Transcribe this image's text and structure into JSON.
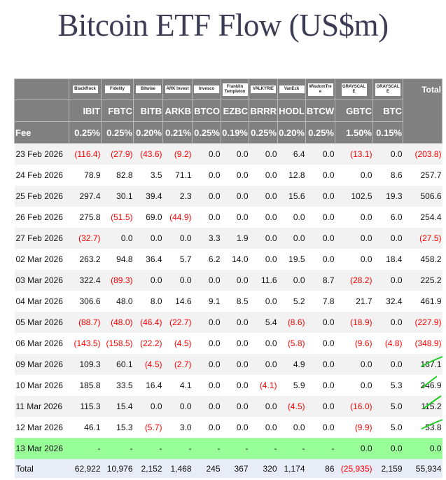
{
  "title": "Bitcoin ETF Flow (US$m)",
  "colors": {
    "header_bg": "#808080",
    "negative": "#ff0000",
    "today_row": "#99ff99",
    "total_row": "#e8ecf6",
    "check_marks": "#22cc22"
  },
  "issuers": [
    "BlackRock",
    "Fidelity",
    "Bitwise",
    "ARK Invest",
    "Invesco",
    "Franklin Templeton",
    "VALKYRIE",
    "VanEck",
    "WisdomTree",
    "GRAYSCALE",
    "GRAYSCALE"
  ],
  "total_label": "Total",
  "tickers": [
    "IBIT",
    "FBTC",
    "BITB",
    "ARKB",
    "BTCO",
    "EZBC",
    "BRRR",
    "HODL",
    "BTCW",
    "GBTC",
    "BTC"
  ],
  "fee_label": "Fee",
  "fees": [
    "0.25%",
    "0.25%",
    "0.20%",
    "0.21%",
    "0.25%",
    "0.19%",
    "0.25%",
    "0.20%",
    "0.25%",
    "1.50%",
    "0.15%"
  ],
  "rows": [
    {
      "date": "23 Feb 2026",
      "values": [
        "(116.4)",
        "(27.9)",
        "(43.6)",
        "(9.2)",
        "0.0",
        "0.0",
        "0.0",
        "6.4",
        "0.0",
        "(13.1)",
        "0.0",
        "(203.8)"
      ]
    },
    {
      "date": "24 Feb 2026",
      "values": [
        "78.9",
        "82.8",
        "3.5",
        "71.1",
        "0.0",
        "0.0",
        "0.0",
        "12.8",
        "0.0",
        "0.0",
        "8.6",
        "257.7"
      ]
    },
    {
      "date": "25 Feb 2026",
      "values": [
        "297.4",
        "30.1",
        "39.4",
        "2.3",
        "0.0",
        "0.0",
        "0.0",
        "15.6",
        "0.0",
        "102.5",
        "19.3",
        "506.6"
      ]
    },
    {
      "date": "26 Feb 2026",
      "values": [
        "275.8",
        "(51.5)",
        "69.0",
        "(44.9)",
        "0.0",
        "0.0",
        "0.0",
        "0.0",
        "0.0",
        "0.0",
        "6.0",
        "254.4"
      ]
    },
    {
      "date": "27 Feb 2026",
      "values": [
        "(32.7)",
        "0.0",
        "0.0",
        "0.0",
        "3.3",
        "1.9",
        "0.0",
        "0.0",
        "0.0",
        "0.0",
        "0.0",
        "(27.5)"
      ]
    },
    {
      "date": "02 Mar 2026",
      "values": [
        "263.2",
        "94.8",
        "36.4",
        "5.7",
        "6.2",
        "14.0",
        "0.0",
        "19.5",
        "0.0",
        "0.0",
        "18.4",
        "458.2"
      ]
    },
    {
      "date": "03 Mar 2026",
      "values": [
        "322.4",
        "(89.3)",
        "0.0",
        "0.0",
        "0.0",
        "0.0",
        "11.6",
        "0.0",
        "8.7",
        "(28.2)",
        "0.0",
        "225.2"
      ]
    },
    {
      "date": "04 Mar 2026",
      "values": [
        "306.6",
        "48.0",
        "8.0",
        "14.6",
        "9.1",
        "8.5",
        "0.0",
        "5.2",
        "7.8",
        "21.7",
        "32.4",
        "461.9"
      ]
    },
    {
      "date": "05 Mar 2026",
      "values": [
        "(88.7)",
        "(48.0)",
        "(46.4)",
        "(22.7)",
        "0.0",
        "0.0",
        "5.4",
        "(8.6)",
        "0.0",
        "(18.9)",
        "0.0",
        "(227.9)"
      ]
    },
    {
      "date": "06 Mar 2026",
      "values": [
        "(143.5)",
        "(158.5)",
        "(22.2)",
        "(4.5)",
        "0.0",
        "0.0",
        "0.0",
        "(5.8)",
        "0.0",
        "(9.6)",
        "(4.8)",
        "(348.9)"
      ]
    },
    {
      "date": "09 Mar 2026",
      "values": [
        "109.3",
        "60.1",
        "(4.5)",
        "(2.7)",
        "0.0",
        "0.0",
        "0.0",
        "4.9",
        "0.0",
        "0.0",
        "0.0",
        "167.1"
      ]
    },
    {
      "date": "10 Mar 2026",
      "values": [
        "185.8",
        "33.5",
        "16.4",
        "4.1",
        "0.0",
        "0.0",
        "(4.1)",
        "5.9",
        "0.0",
        "0.0",
        "5.3",
        "246.9"
      ]
    },
    {
      "date": "11 Mar 2026",
      "values": [
        "115.3",
        "15.4",
        "0.0",
        "0.0",
        "0.0",
        "0.0",
        "0.0",
        "(4.5)",
        "0.0",
        "(16.0)",
        "5.0",
        "115.2"
      ]
    },
    {
      "date": "12 Mar 2026",
      "values": [
        "46.1",
        "15.3",
        "(5.7)",
        "3.0",
        "0.0",
        "0.0",
        "0.0",
        "0.0",
        "0.0",
        "(9.9)",
        "5.0",
        "53.8"
      ]
    },
    {
      "date": "13 Mar 2026",
      "today": true,
      "values": [
        "-",
        "-",
        "-",
        "-",
        "-",
        "-",
        "-",
        "-",
        "-",
        "0.0",
        "0.0",
        "0.0"
      ]
    }
  ],
  "totals": {
    "label": "Total",
    "values": [
      "62,922",
      "10,976",
      "2,152",
      "1,468",
      "245",
      "367",
      "320",
      "1,174",
      "86",
      "(25,935)",
      "2,159",
      "55,934"
    ]
  }
}
